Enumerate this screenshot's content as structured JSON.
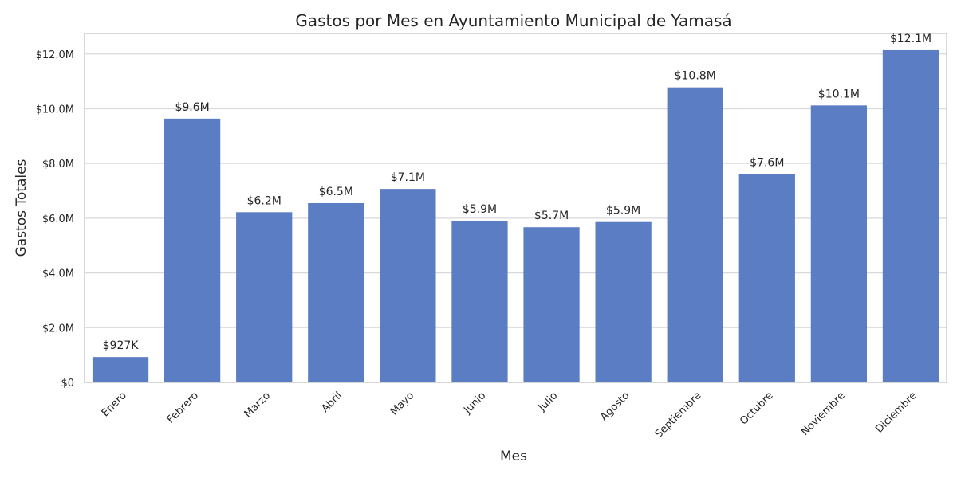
{
  "chart_data": {
    "type": "bar",
    "title": "Gastos por Mes en Ayuntamiento Municipal de Yamasá",
    "xlabel": "Mes",
    "ylabel": "Gastos Totales",
    "categories": [
      "Enero",
      "Febrero",
      "Marzo",
      "Abril",
      "Mayo",
      "Junio",
      "Julio",
      "Agosto",
      "Septiembre",
      "Octubre",
      "Noviembre",
      "Diciembre"
    ],
    "values": [
      927000,
      9640000,
      6220000,
      6550000,
      7070000,
      5910000,
      5670000,
      5860000,
      10780000,
      7610000,
      10120000,
      12140000
    ],
    "data_labels": [
      "$927K",
      "$9.6M",
      "$6.2M",
      "$6.5M",
      "$7.1M",
      "$5.9M",
      "$5.7M",
      "$5.9M",
      "$10.8M",
      "$7.6M",
      "$10.1M",
      "$12.1M"
    ],
    "yticks": [
      0,
      2000000,
      4000000,
      6000000,
      8000000,
      10000000,
      12000000
    ],
    "ytick_labels": [
      "$0",
      "$2.0M",
      "$4.0M",
      "$6.0M",
      "$8.0M",
      "$10.0M",
      "$12.0M"
    ],
    "ylim": [
      0,
      12750000
    ],
    "grid": true,
    "colors": {
      "bar": "#5a7dc4",
      "grid": "#d9d9d9",
      "frame": "#cccccc",
      "text": "#262626"
    }
  }
}
